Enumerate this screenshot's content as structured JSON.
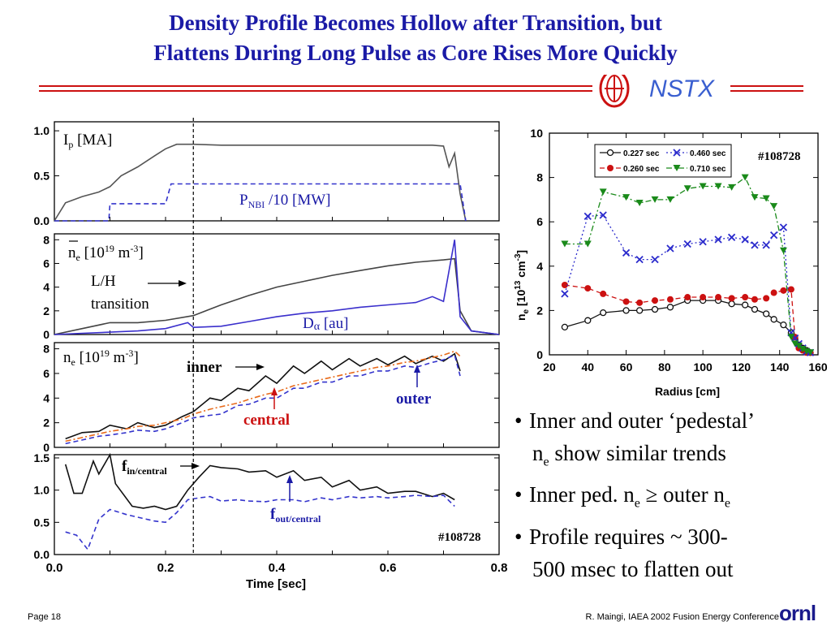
{
  "slide": {
    "title_line1": "Density Profile Becomes Hollow after Transition, but",
    "title_line2": "Flattens During Long Pulse as Core Rises More Quickly",
    "logo_text": "NSTX",
    "page_label": "Page 18",
    "footer_credit": "R. Maingi, IAEA 2002 Fusion Energy Conference",
    "footer_logo": "ornl",
    "accent_color": "#1a1aa6",
    "rule_color": "#cc1111"
  },
  "bullets": [
    {
      "line1": "Inner and outer ‘pedestal’",
      "line2_pre": "n",
      "line2_sub": "e",
      "line2_post": " show similar trends"
    },
    {
      "line1_pre": "Inner ped. n",
      "line1_sub": "e",
      "line1_mid": " ≥ outer n",
      "line1_sub2": "e"
    },
    {
      "line1": "Profile requires ~ 300-",
      "line2": "500 msec to flatten out"
    }
  ],
  "chart_data": [
    {
      "type": "line",
      "panel": "Ip / PNBI",
      "labels": {
        "ip": "I",
        "ip_sub": "p",
        "ip_unit": " [MA]",
        "pnbi": "P",
        "pnbi_sub": "NBI",
        "pnbi_unit": " /10 [MW]"
      },
      "yticks": [
        "0.0",
        "0.5",
        "1.0"
      ],
      "ylim": [
        0,
        1.1
      ],
      "series": [
        {
          "color": "#555555",
          "style": "solid",
          "x": [
            0.0,
            0.02,
            0.05,
            0.08,
            0.1,
            0.12,
            0.15,
            0.18,
            0.2,
            0.22,
            0.25,
            0.3,
            0.4,
            0.5,
            0.6,
            0.68,
            0.7,
            0.71,
            0.72,
            0.73,
            0.74
          ],
          "y": [
            0.0,
            0.2,
            0.27,
            0.32,
            0.38,
            0.5,
            0.6,
            0.72,
            0.8,
            0.85,
            0.85,
            0.84,
            0.84,
            0.84,
            0.84,
            0.84,
            0.83,
            0.6,
            0.75,
            0.3,
            0.0
          ]
        },
        {
          "color": "#3333cc",
          "style": "dashed",
          "x": [
            0.0,
            0.098,
            0.1,
            0.2,
            0.21,
            0.73,
            0.74
          ],
          "y": [
            0.0,
            0.0,
            0.19,
            0.19,
            0.41,
            0.41,
            0.0
          ]
        }
      ]
    },
    {
      "type": "line",
      "panel": "line-average ne / Dalpha",
      "labels": {
        "ne": "n",
        "ne_sub": "e",
        "ne_unit": " [10",
        "ne_exp": "19",
        "ne_unit2": " m",
        "ne_exp2": "-3",
        "ne_close": "]",
        "lh1": "L/H",
        "lh2": "transition",
        "da": "D",
        "da_greek": "α",
        "da_unit": " [au]"
      },
      "yticks": [
        "0",
        "2",
        "4",
        "6",
        "8"
      ],
      "ylim": [
        0,
        8.5
      ],
      "series": [
        {
          "color": "#444444",
          "style": "solid",
          "x": [
            0.0,
            0.05,
            0.1,
            0.15,
            0.2,
            0.25,
            0.3,
            0.35,
            0.4,
            0.45,
            0.5,
            0.55,
            0.6,
            0.65,
            0.7,
            0.72,
            0.73,
            0.75,
            0.8
          ],
          "y": [
            0.0,
            0.5,
            1.0,
            1.0,
            1.2,
            1.6,
            2.5,
            3.3,
            4.0,
            4.5,
            5.0,
            5.4,
            5.8,
            6.1,
            6.3,
            6.4,
            2.0,
            0.3,
            0.0
          ]
        },
        {
          "color": "#3a2fcc",
          "style": "solid",
          "x": [
            0.0,
            0.05,
            0.1,
            0.15,
            0.2,
            0.24,
            0.25,
            0.3,
            0.35,
            0.4,
            0.45,
            0.5,
            0.55,
            0.6,
            0.65,
            0.68,
            0.7,
            0.72,
            0.73,
            0.75,
            0.8
          ],
          "y": [
            0.0,
            0.1,
            0.2,
            0.3,
            0.5,
            1.0,
            0.6,
            0.7,
            1.1,
            1.5,
            1.8,
            2.0,
            2.3,
            2.5,
            2.7,
            3.2,
            2.8,
            8.0,
            1.5,
            0.3,
            0.0
          ]
        }
      ]
    },
    {
      "type": "line",
      "panel": "ne inner / central / outer",
      "labels": {
        "ne": "n",
        "ne_sub": "e",
        "ne_unit": " [10",
        "ne_exp": "19",
        "ne_unit2": " m",
        "ne_exp2": "-3",
        "ne_close": "]",
        "inner": "inner",
        "central": "central",
        "outer": "outer"
      },
      "yticks": [
        "0",
        "2",
        "4",
        "6",
        "8"
      ],
      "ylim": [
        0,
        8.5
      ],
      "series": [
        {
          "name": "inner",
          "color": "#111111",
          "style": "solid",
          "x": [
            0.02,
            0.05,
            0.08,
            0.1,
            0.13,
            0.15,
            0.18,
            0.2,
            0.23,
            0.25,
            0.28,
            0.3,
            0.33,
            0.35,
            0.38,
            0.4,
            0.43,
            0.45,
            0.48,
            0.5,
            0.53,
            0.55,
            0.58,
            0.6,
            0.63,
            0.65,
            0.68,
            0.7,
            0.72,
            0.73
          ],
          "y": [
            0.7,
            1.2,
            1.3,
            1.8,
            1.5,
            2.0,
            1.6,
            1.8,
            2.5,
            2.9,
            4.0,
            3.8,
            4.8,
            4.6,
            5.8,
            5.2,
            6.6,
            6.0,
            7.0,
            6.3,
            7.2,
            6.6,
            7.2,
            6.7,
            7.4,
            6.8,
            7.4,
            7.0,
            7.6,
            6.2
          ]
        },
        {
          "name": "central",
          "color": "#e86a1a",
          "style": "dashdot",
          "x": [
            0.02,
            0.05,
            0.08,
            0.1,
            0.13,
            0.15,
            0.18,
            0.2,
            0.23,
            0.25,
            0.28,
            0.3,
            0.33,
            0.35,
            0.38,
            0.4,
            0.43,
            0.45,
            0.48,
            0.5,
            0.53,
            0.55,
            0.58,
            0.6,
            0.63,
            0.65,
            0.68,
            0.7,
            0.72,
            0.73
          ],
          "y": [
            0.5,
            0.8,
            1.1,
            1.3,
            1.5,
            1.7,
            1.8,
            2.0,
            2.3,
            2.7,
            3.1,
            3.3,
            3.6,
            3.9,
            4.3,
            4.5,
            5.0,
            5.2,
            5.5,
            5.7,
            6.0,
            6.2,
            6.5,
            6.6,
            6.9,
            7.0,
            7.3,
            7.5,
            7.8,
            7.4
          ]
        },
        {
          "name": "outer",
          "color": "#3333cc",
          "style": "dashed",
          "x": [
            0.02,
            0.05,
            0.08,
            0.1,
            0.13,
            0.15,
            0.18,
            0.2,
            0.23,
            0.25,
            0.28,
            0.3,
            0.33,
            0.35,
            0.38,
            0.4,
            0.43,
            0.45,
            0.48,
            0.5,
            0.53,
            0.55,
            0.58,
            0.6,
            0.63,
            0.65,
            0.68,
            0.7,
            0.72,
            0.73
          ],
          "y": [
            0.3,
            0.6,
            0.9,
            1.0,
            1.2,
            1.4,
            1.3,
            1.5,
            2.0,
            2.4,
            2.6,
            2.7,
            3.4,
            3.5,
            4.0,
            4.0,
            4.8,
            4.8,
            5.3,
            5.3,
            5.8,
            5.8,
            6.2,
            6.2,
            6.6,
            6.5,
            6.9,
            7.1,
            7.5,
            5.8
          ]
        }
      ]
    },
    {
      "type": "line",
      "panel": "density ratios",
      "labels": {
        "fin": "f",
        "fin_sub": "in/central",
        "fout": "f",
        "fout_sub": "out/central",
        "shot": "#108728"
      },
      "yticks": [
        "0.0",
        "0.5",
        "1.0",
        "1.5"
      ],
      "xticks": [
        "0.0",
        "0.2",
        "0.4",
        "0.6",
        "0.8"
      ],
      "xlabel": "Time [sec]",
      "xlim": [
        0,
        0.8
      ],
      "ylim": [
        0,
        1.55
      ],
      "series": [
        {
          "color": "#111111",
          "style": "solid",
          "x": [
            0.02,
            0.035,
            0.05,
            0.07,
            0.08,
            0.1,
            0.11,
            0.14,
            0.16,
            0.18,
            0.2,
            0.22,
            0.24,
            0.26,
            0.28,
            0.3,
            0.33,
            0.35,
            0.38,
            0.4,
            0.43,
            0.45,
            0.48,
            0.5,
            0.53,
            0.55,
            0.58,
            0.6,
            0.63,
            0.65,
            0.68,
            0.7,
            0.72
          ],
          "y": [
            1.4,
            0.95,
            0.95,
            1.45,
            1.25,
            1.55,
            1.1,
            0.75,
            0.72,
            0.75,
            0.7,
            0.75,
            1.0,
            1.2,
            1.38,
            1.35,
            1.33,
            1.28,
            1.3,
            1.2,
            1.3,
            1.15,
            1.2,
            1.05,
            1.15,
            1.0,
            1.05,
            0.95,
            0.98,
            0.98,
            0.9,
            0.95,
            0.85
          ]
        },
        {
          "color": "#3333cc",
          "style": "dashed",
          "x": [
            0.02,
            0.04,
            0.06,
            0.08,
            0.1,
            0.13,
            0.15,
            0.18,
            0.2,
            0.22,
            0.24,
            0.26,
            0.28,
            0.3,
            0.33,
            0.35,
            0.38,
            0.4,
            0.43,
            0.45,
            0.48,
            0.5,
            0.53,
            0.55,
            0.58,
            0.6,
            0.63,
            0.65,
            0.68,
            0.7,
            0.72
          ],
          "y": [
            0.35,
            0.3,
            0.08,
            0.55,
            0.7,
            0.62,
            0.58,
            0.52,
            0.5,
            0.65,
            0.85,
            0.88,
            0.9,
            0.83,
            0.85,
            0.83,
            0.82,
            0.85,
            0.85,
            0.82,
            0.88,
            0.85,
            0.9,
            0.88,
            0.9,
            0.88,
            0.9,
            0.92,
            0.9,
            0.92,
            0.75
          ]
        }
      ]
    },
    {
      "type": "line",
      "panel": "ne radial profiles",
      "xlabel": "Radius [cm]",
      "ylabel": "n",
      "ylabel_sub": "e",
      "ylabel_unit": " [10",
      "ylabel_exp": "13",
      "ylabel_unit2": " cm",
      "ylabel_exp2": "-3",
      "ylabel_close": "]",
      "shot": "#108728",
      "xticks": [
        "20",
        "40",
        "60",
        "80",
        "100",
        "120",
        "140",
        "160"
      ],
      "yticks": [
        "0",
        "2",
        "4",
        "6",
        "8",
        "10"
      ],
      "xlim": [
        20,
        160
      ],
      "ylim": [
        0,
        10
      ],
      "legend": "top-right",
      "series": [
        {
          "name": "0.227 sec",
          "color": "#111111",
          "style": "solid",
          "marker": "circle",
          "x": [
            28,
            40,
            48,
            60,
            67,
            75,
            83,
            92,
            100,
            108,
            115,
            122,
            127,
            133,
            137,
            142,
            146,
            148,
            150,
            152,
            154,
            156
          ],
          "y": [
            1.25,
            1.55,
            1.9,
            2.0,
            2.0,
            2.05,
            2.15,
            2.45,
            2.45,
            2.45,
            2.3,
            2.25,
            2.05,
            1.85,
            1.6,
            1.35,
            1.0,
            0.7,
            0.45,
            0.3,
            0.2,
            0.1
          ]
        },
        {
          "name": "0.260 sec",
          "color": "#cc1111",
          "style": "dashed",
          "marker": "dot",
          "x": [
            28,
            40,
            48,
            60,
            67,
            75,
            83,
            92,
            100,
            108,
            115,
            122,
            127,
            133,
            137,
            142,
            146,
            148,
            150,
            152,
            154,
            156
          ],
          "y": [
            3.15,
            3.0,
            2.75,
            2.4,
            2.35,
            2.45,
            2.5,
            2.6,
            2.6,
            2.6,
            2.55,
            2.6,
            2.5,
            2.55,
            2.8,
            2.9,
            2.95,
            0.8,
            0.3,
            0.2,
            0.1,
            0.1
          ]
        },
        {
          "name": "0.460 sec",
          "color": "#2a2acc",
          "style": "dotted",
          "marker": "x",
          "x": [
            28,
            40,
            48,
            60,
            67,
            75,
            83,
            92,
            100,
            108,
            115,
            122,
            127,
            133,
            137,
            142,
            146,
            148,
            150,
            152,
            154,
            156
          ],
          "y": [
            2.75,
            6.25,
            6.3,
            4.6,
            4.3,
            4.3,
            4.8,
            5.0,
            5.1,
            5.2,
            5.3,
            5.2,
            4.95,
            4.95,
            5.4,
            5.75,
            1.0,
            0.75,
            0.5,
            0.3,
            0.15,
            0.1
          ]
        },
        {
          "name": "0.710 sec",
          "color": "#1a8a1a",
          "style": "dashdot",
          "marker": "triangle",
          "x": [
            28,
            40,
            48,
            60,
            67,
            75,
            83,
            92,
            100,
            108,
            115,
            122,
            127,
            133,
            137,
            142,
            146,
            148,
            150,
            152,
            154,
            156
          ],
          "y": [
            5.0,
            5.0,
            7.35,
            7.1,
            6.85,
            7.0,
            7.0,
            7.5,
            7.6,
            7.6,
            7.55,
            8.0,
            7.1,
            7.05,
            6.7,
            4.7,
            0.8,
            0.5,
            0.4,
            0.25,
            0.15,
            0.1
          ]
        }
      ]
    }
  ]
}
